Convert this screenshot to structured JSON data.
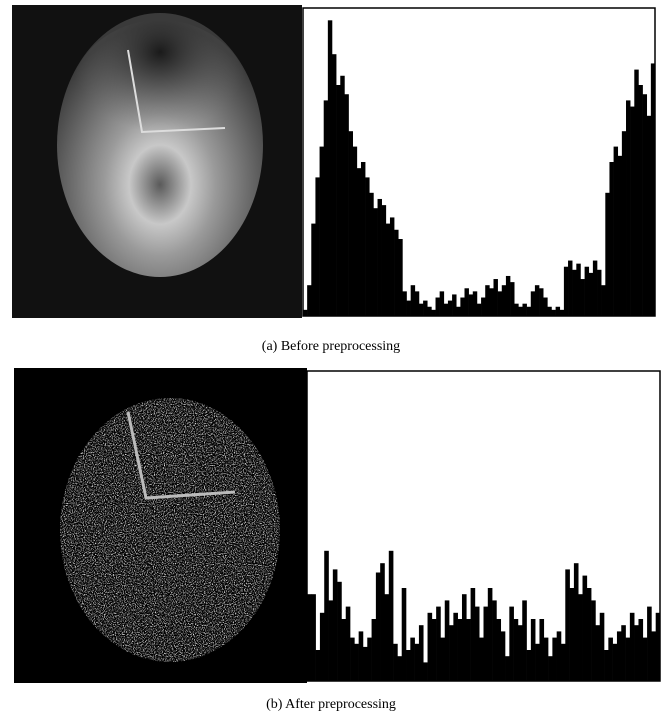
{
  "figures": [
    {
      "caption": "(a) Before preprocessing",
      "chart_data": {
        "type": "histogram",
        "color": "#000000",
        "ylim": [
          0,
          100
        ],
        "values": [
          2,
          10,
          30,
          45,
          55,
          70,
          96,
          85,
          75,
          78,
          72,
          60,
          55,
          48,
          50,
          45,
          40,
          35,
          38,
          36,
          30,
          32,
          28,
          25,
          8,
          5,
          10,
          8,
          4,
          5,
          3,
          2,
          6,
          8,
          4,
          5,
          7,
          3,
          6,
          9,
          7,
          8,
          4,
          6,
          10,
          9,
          12,
          8,
          10,
          13,
          11,
          4,
          3,
          4,
          3,
          8,
          10,
          9,
          6,
          3,
          2,
          3,
          2,
          16,
          18,
          15,
          17,
          12,
          16,
          14,
          18,
          15,
          10,
          40,
          50,
          55,
          52,
          60,
          70,
          68,
          80,
          75,
          72,
          65,
          82
        ]
      }
    },
    {
      "caption": "(b) After preprocessing",
      "chart_data": {
        "type": "histogram",
        "color": "#000000",
        "ylim": [
          0,
          100
        ],
        "values": [
          28,
          28,
          10,
          22,
          42,
          26,
          36,
          32,
          20,
          24,
          14,
          12,
          16,
          11,
          14,
          20,
          35,
          38,
          28,
          42,
          12,
          8,
          30,
          10,
          14,
          12,
          18,
          6,
          22,
          20,
          24,
          14,
          26,
          18,
          22,
          20,
          28,
          20,
          30,
          24,
          14,
          24,
          30,
          26,
          20,
          16,
          8,
          24,
          20,
          18,
          26,
          10,
          20,
          12,
          20,
          14,
          8,
          14,
          16,
          12,
          36,
          30,
          38,
          28,
          34,
          30,
          26,
          18,
          22,
          10,
          14,
          12,
          16,
          18,
          14,
          22,
          18,
          20,
          14,
          24,
          16,
          22
        ]
      }
    }
  ]
}
